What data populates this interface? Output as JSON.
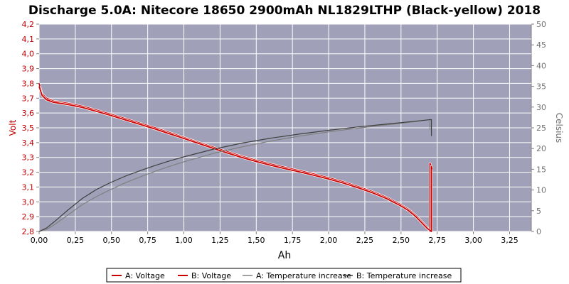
{
  "chart_data": {
    "type": "line",
    "title": "Discharge 5.0A: Nitecore 18650 2900mAh NL1829LTHP (Black-yellow) 2018",
    "xlabel": "Ah",
    "ylabel_left": "Volt",
    "ylabel_right": "Celsius",
    "xlim": [
      0,
      3.4
    ],
    "ylim_left": [
      2.8,
      4.2
    ],
    "ylim_right": [
      0,
      50
    ],
    "x_ticks": [
      "0,00",
      "0,25",
      "0,50",
      "0,75",
      "1,00",
      "1,25",
      "1,50",
      "1,75",
      "2,00",
      "2,25",
      "2,50",
      "2,75",
      "3,00",
      "3,25"
    ],
    "y_left_ticks": [
      "2,8",
      "2,9",
      "3,0",
      "3,1",
      "3,2",
      "3,3",
      "3,4",
      "3,5",
      "3,6",
      "3,7",
      "3,8",
      "3,9",
      "4,0",
      "4,1",
      "4,2"
    ],
    "y_right_ticks": [
      "0",
      "5",
      "10",
      "15",
      "20",
      "25",
      "30",
      "35",
      "40",
      "45",
      "50"
    ],
    "grid": true,
    "legend_position": "bottom",
    "colors": {
      "plot_background": "#a0a0b8",
      "voltage": "#cc0000",
      "temp_a": "#808080",
      "temp_b": "#404040",
      "left_axis": "#c00000",
      "right_axis": "#707070"
    },
    "series": [
      {
        "name": "A: Voltage",
        "axis": "left",
        "x": [
          0,
          0.02,
          0.05,
          0.1,
          0.2,
          0.3,
          0.4,
          0.5,
          0.6,
          0.7,
          0.8,
          0.9,
          1.0,
          1.1,
          1.2,
          1.3,
          1.4,
          1.5,
          1.6,
          1.7,
          1.8,
          1.9,
          2.0,
          2.1,
          2.2,
          2.3,
          2.4,
          2.5,
          2.55,
          2.6,
          2.65,
          2.68,
          2.7,
          2.7,
          2.705
        ],
        "y": [
          3.8,
          3.73,
          3.7,
          3.68,
          3.665,
          3.645,
          3.618,
          3.59,
          3.56,
          3.53,
          3.5,
          3.468,
          3.435,
          3.402,
          3.37,
          3.338,
          3.308,
          3.28,
          3.255,
          3.232,
          3.21,
          3.187,
          3.162,
          3.135,
          3.104,
          3.07,
          3.03,
          2.98,
          2.95,
          2.91,
          2.86,
          2.83,
          2.8,
          3.26,
          3.25
        ]
      },
      {
        "name": "B: Voltage",
        "axis": "left",
        "x": [
          0,
          0.02,
          0.05,
          0.1,
          0.2,
          0.3,
          0.4,
          0.5,
          0.6,
          0.7,
          0.8,
          0.9,
          1.0,
          1.1,
          1.2,
          1.3,
          1.4,
          1.5,
          1.6,
          1.7,
          1.8,
          1.9,
          2.0,
          2.1,
          2.2,
          2.3,
          2.4,
          2.5,
          2.55,
          2.6,
          2.65,
          2.68,
          2.71,
          2.71,
          2.715
        ],
        "y": [
          3.78,
          3.72,
          3.69,
          3.672,
          3.657,
          3.637,
          3.61,
          3.582,
          3.552,
          3.522,
          3.492,
          3.46,
          3.428,
          3.395,
          3.362,
          3.33,
          3.3,
          3.272,
          3.247,
          3.224,
          3.202,
          3.179,
          3.154,
          3.127,
          3.096,
          3.062,
          3.022,
          2.972,
          2.942,
          2.902,
          2.852,
          2.822,
          2.8,
          3.24,
          3.22
        ]
      },
      {
        "name": "A: Temperature increase",
        "axis": "right",
        "x": [
          0,
          0.05,
          0.1,
          0.2,
          0.3,
          0.4,
          0.5,
          0.6,
          0.7,
          0.8,
          0.9,
          1.0,
          1.2,
          1.4,
          1.6,
          1.8,
          2.0,
          2.2,
          2.4,
          2.6,
          2.7,
          2.7
        ],
        "y": [
          0,
          0.5,
          1.5,
          4,
          6.5,
          8.5,
          10.2,
          11.8,
          13.2,
          14.5,
          15.7,
          16.8,
          18.8,
          20.4,
          21.8,
          23,
          24,
          24.9,
          25.7,
          26.5,
          27,
          24.5
        ]
      },
      {
        "name": "B: Temperature increase",
        "axis": "right",
        "x": [
          0,
          0.05,
          0.1,
          0.2,
          0.3,
          0.4,
          0.5,
          0.6,
          0.7,
          0.8,
          0.9,
          1.0,
          1.2,
          1.4,
          1.6,
          1.8,
          2.0,
          2.2,
          2.4,
          2.6,
          2.71,
          2.71
        ],
        "y": [
          0,
          0.8,
          2.2,
          5.2,
          8,
          10.2,
          11.9,
          13.4,
          14.7,
          15.9,
          17,
          18,
          19.8,
          21.3,
          22.5,
          23.5,
          24.4,
          25.2,
          25.9,
          26.6,
          27,
          23
        ]
      }
    ]
  }
}
